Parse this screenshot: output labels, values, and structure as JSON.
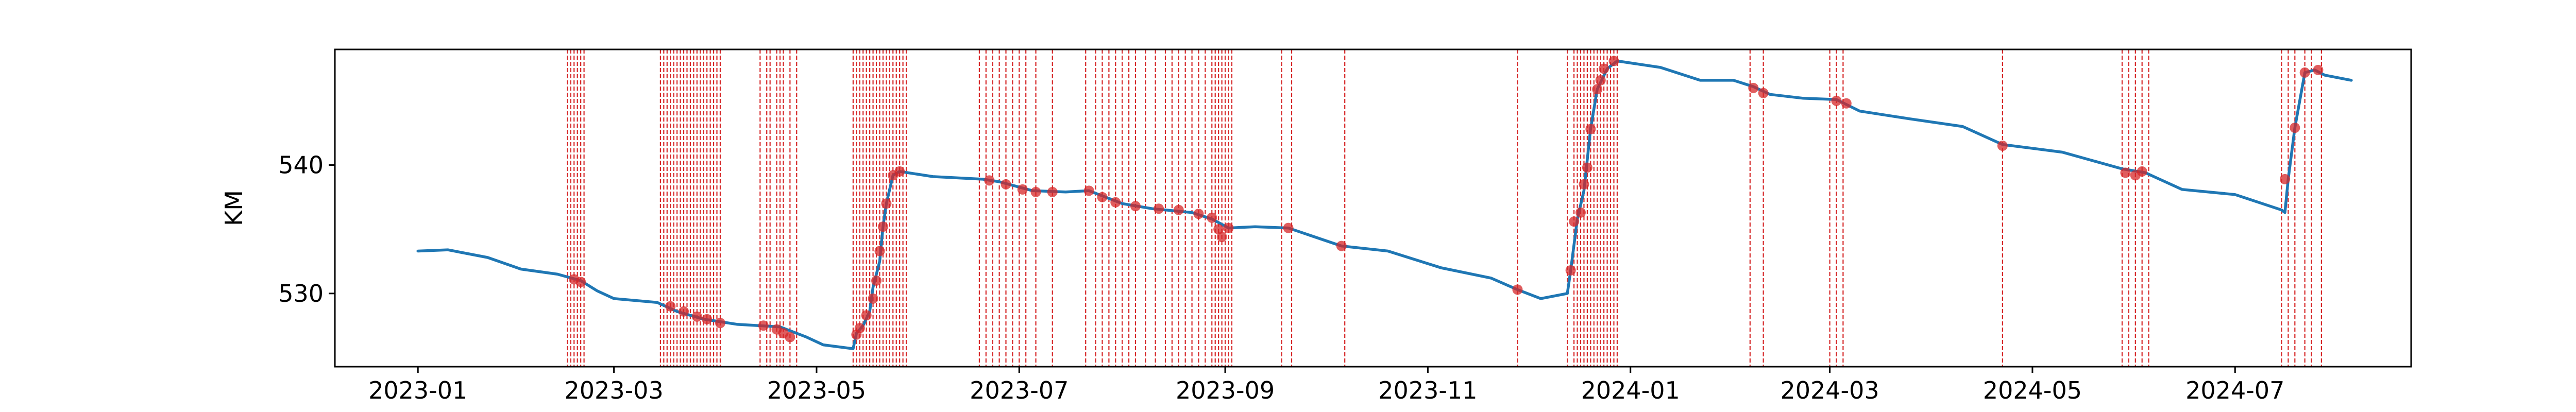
{
  "chart_data": {
    "type": "line",
    "title": "",
    "xlabel": "",
    "ylabel": "KM",
    "x_range": [
      "2022-12-07",
      "2024-08-23"
    ],
    "ylim": [
      524.3,
      549.0
    ],
    "grid": false,
    "x_ticks": [
      "2023-01",
      "2023-03",
      "2023-05",
      "2023-07",
      "2023-09",
      "2023-11",
      "2024-01",
      "2024-03",
      "2024-05",
      "2024-07"
    ],
    "y_ticks": [
      530,
      540
    ],
    "colors": {
      "line": "#1f77b4",
      "event_line": "#d62728",
      "marker": "#d62728"
    },
    "series": [
      {
        "line_points": [
          [
            "2023-01-01",
            533.3
          ],
          [
            "2023-01-10",
            533.4
          ],
          [
            "2023-01-22",
            532.8
          ],
          [
            "2023-02-01",
            531.9
          ],
          [
            "2023-02-12",
            531.5
          ],
          [
            "2023-02-19",
            531.0
          ],
          [
            "2023-02-24",
            530.2
          ],
          [
            "2023-03-01",
            529.6
          ],
          [
            "2023-03-14",
            529.3
          ],
          [
            "2023-03-20",
            528.6
          ],
          [
            "2023-03-28",
            528.0
          ],
          [
            "2023-04-07",
            527.6
          ],
          [
            "2023-04-20",
            527.4
          ],
          [
            "2023-04-28",
            526.6
          ],
          [
            "2023-05-03",
            526.0
          ],
          [
            "2023-05-12",
            525.7
          ],
          [
            "2023-05-13",
            526.9
          ],
          [
            "2023-05-15",
            527.5
          ],
          [
            "2023-05-17",
            528.6
          ],
          [
            "2023-05-18",
            530.5
          ],
          [
            "2023-05-20",
            532.5
          ],
          [
            "2023-05-21",
            535.2
          ],
          [
            "2023-05-22",
            537.0
          ],
          [
            "2023-05-24",
            539.2
          ],
          [
            "2023-05-26",
            539.5
          ],
          [
            "2023-06-05",
            539.1
          ],
          [
            "2023-06-20",
            538.9
          ],
          [
            "2023-06-25",
            538.7
          ],
          [
            "2023-07-05",
            538.0
          ],
          [
            "2023-07-15",
            537.9
          ],
          [
            "2023-07-22",
            538.0
          ],
          [
            "2023-08-01",
            537.0
          ],
          [
            "2023-08-10",
            536.6
          ],
          [
            "2023-08-22",
            536.3
          ],
          [
            "2023-08-28",
            535.8
          ],
          [
            "2023-09-02",
            535.1
          ],
          [
            "2023-09-10",
            535.2
          ],
          [
            "2023-09-20",
            535.1
          ],
          [
            "2023-10-06",
            533.7
          ],
          [
            "2023-10-20",
            533.3
          ],
          [
            "2023-11-05",
            532.0
          ],
          [
            "2023-11-20",
            531.2
          ],
          [
            "2023-11-28",
            530.3
          ],
          [
            "2023-12-05",
            529.6
          ],
          [
            "2023-12-13",
            530.0
          ],
          [
            "2023-12-14",
            531.8
          ],
          [
            "2023-12-16",
            535.8
          ],
          [
            "2023-12-18",
            538.0
          ],
          [
            "2023-12-20",
            542.8
          ],
          [
            "2023-12-22",
            545.9
          ],
          [
            "2023-12-25",
            547.5
          ],
          [
            "2023-12-28",
            548.1
          ],
          [
            "2024-01-10",
            547.6
          ],
          [
            "2024-01-22",
            546.6
          ],
          [
            "2024-02-01",
            546.6
          ],
          [
            "2024-02-07",
            546.1
          ],
          [
            "2024-02-12",
            545.5
          ],
          [
            "2024-02-22",
            545.2
          ],
          [
            "2024-03-03",
            545.1
          ],
          [
            "2024-03-10",
            544.2
          ],
          [
            "2024-03-25",
            543.6
          ],
          [
            "2024-04-10",
            543.0
          ],
          [
            "2024-04-22",
            541.6
          ],
          [
            "2024-05-10",
            541.0
          ],
          [
            "2024-05-28",
            539.7
          ],
          [
            "2024-06-04",
            539.4
          ],
          [
            "2024-06-15",
            538.1
          ],
          [
            "2024-07-01",
            537.7
          ],
          [
            "2024-07-15",
            536.5
          ],
          [
            "2024-07-16",
            536.3
          ],
          [
            "2024-07-17",
            538.9
          ],
          [
            "2024-07-19",
            542.9
          ],
          [
            "2024-07-22",
            547.2
          ],
          [
            "2024-07-25",
            547.4
          ],
          [
            "2024-07-28",
            547.0
          ],
          [
            "2024-08-05",
            546.6
          ]
        ],
        "markers": [
          [
            "2023-02-17",
            531.1
          ],
          [
            "2023-02-19",
            530.9
          ],
          [
            "2023-03-18",
            529.0
          ],
          [
            "2023-03-22",
            528.6
          ],
          [
            "2023-03-26",
            528.2
          ],
          [
            "2023-03-29",
            528.0
          ],
          [
            "2023-04-02",
            527.7
          ],
          [
            "2023-04-15",
            527.5
          ],
          [
            "2023-04-19",
            527.2
          ],
          [
            "2023-04-21",
            526.9
          ],
          [
            "2023-04-23",
            526.6
          ],
          [
            "2023-05-13",
            526.8
          ],
          [
            "2023-05-14",
            527.3
          ],
          [
            "2023-05-16",
            528.3
          ],
          [
            "2023-05-18",
            529.6
          ],
          [
            "2023-05-19",
            531.0
          ],
          [
            "2023-05-20",
            533.3
          ],
          [
            "2023-05-21",
            535.2
          ],
          [
            "2023-05-22",
            537.0
          ],
          [
            "2023-05-24",
            539.2
          ],
          [
            "2023-05-26",
            539.5
          ],
          [
            "2023-06-22",
            538.8
          ],
          [
            "2023-06-27",
            538.5
          ],
          [
            "2023-07-02",
            538.1
          ],
          [
            "2023-07-06",
            537.9
          ],
          [
            "2023-07-11",
            537.9
          ],
          [
            "2023-07-22",
            538.0
          ],
          [
            "2023-07-26",
            537.5
          ],
          [
            "2023-07-30",
            537.1
          ],
          [
            "2023-08-05",
            536.8
          ],
          [
            "2023-08-12",
            536.6
          ],
          [
            "2023-08-18",
            536.5
          ],
          [
            "2023-08-24",
            536.2
          ],
          [
            "2023-08-28",
            535.9
          ],
          [
            "2023-08-30",
            535.0
          ],
          [
            "2023-08-31",
            534.4
          ],
          [
            "2023-09-02",
            535.1
          ],
          [
            "2023-09-20",
            535.1
          ],
          [
            "2023-10-06",
            533.7
          ],
          [
            "2023-11-28",
            530.3
          ],
          [
            "2023-12-14",
            531.8
          ],
          [
            "2023-12-15",
            535.6
          ],
          [
            "2023-12-17",
            536.3
          ],
          [
            "2023-12-18",
            538.5
          ],
          [
            "2023-12-19",
            539.8
          ],
          [
            "2023-12-20",
            542.8
          ],
          [
            "2023-12-22",
            545.9
          ],
          [
            "2023-12-23",
            546.6
          ],
          [
            "2023-12-24",
            547.5
          ],
          [
            "2023-12-27",
            548.1
          ],
          [
            "2024-02-07",
            546.0
          ],
          [
            "2024-02-10",
            545.6
          ],
          [
            "2024-03-03",
            545.0
          ],
          [
            "2024-03-06",
            544.8
          ],
          [
            "2024-04-22",
            541.5
          ],
          [
            "2024-05-29",
            539.4
          ],
          [
            "2024-06-01",
            539.2
          ],
          [
            "2024-06-03",
            539.5
          ],
          [
            "2024-07-16",
            538.9
          ],
          [
            "2024-07-19",
            542.9
          ],
          [
            "2024-07-22",
            547.2
          ],
          [
            "2024-07-26",
            547.4
          ]
        ]
      }
    ],
    "event_lines": [
      "2023-02-15",
      "2023-02-16",
      "2023-02-17",
      "2023-02-18",
      "2023-02-19",
      "2023-02-20",
      "2023-03-15",
      "2023-03-16",
      "2023-03-17",
      "2023-03-18",
      "2023-03-19",
      "2023-03-20",
      "2023-03-21",
      "2023-03-22",
      "2023-03-23",
      "2023-03-24",
      "2023-03-25",
      "2023-03-26",
      "2023-03-27",
      "2023-03-28",
      "2023-03-29",
      "2023-03-30",
      "2023-03-31",
      "2023-04-01",
      "2023-04-02",
      "2023-04-14",
      "2023-04-16",
      "2023-04-17",
      "2023-04-19",
      "2023-04-20",
      "2023-04-21",
      "2023-04-23",
      "2023-04-25",
      "2023-05-12",
      "2023-05-13",
      "2023-05-14",
      "2023-05-15",
      "2023-05-16",
      "2023-05-17",
      "2023-05-18",
      "2023-05-19",
      "2023-05-20",
      "2023-05-21",
      "2023-05-22",
      "2023-05-23",
      "2023-05-24",
      "2023-05-25",
      "2023-05-26",
      "2023-05-27",
      "2023-05-28",
      "2023-06-19",
      "2023-06-21",
      "2023-06-23",
      "2023-06-25",
      "2023-06-27",
      "2023-06-29",
      "2023-07-01",
      "2023-07-03",
      "2023-07-06",
      "2023-07-11",
      "2023-07-21",
      "2023-07-24",
      "2023-07-26",
      "2023-07-28",
      "2023-07-30",
      "2023-08-01",
      "2023-08-03",
      "2023-08-05",
      "2023-08-08",
      "2023-08-11",
      "2023-08-14",
      "2023-08-16",
      "2023-08-18",
      "2023-08-20",
      "2023-08-22",
      "2023-08-24",
      "2023-08-26",
      "2023-08-28",
      "2023-08-29",
      "2023-08-30",
      "2023-08-31",
      "2023-09-01",
      "2023-09-02",
      "2023-09-03",
      "2023-09-18",
      "2023-09-21",
      "2023-10-07",
      "2023-11-28",
      "2023-12-13",
      "2023-12-15",
      "2023-12-16",
      "2023-12-17",
      "2023-12-18",
      "2023-12-19",
      "2023-12-20",
      "2023-12-21",
      "2023-12-22",
      "2023-12-23",
      "2023-12-24",
      "2023-12-25",
      "2023-12-26",
      "2023-12-27",
      "2023-12-28",
      "2024-02-06",
      "2024-02-10",
      "2024-03-01",
      "2024-03-03",
      "2024-03-05",
      "2024-04-22",
      "2024-05-28",
      "2024-05-30",
      "2024-06-01",
      "2024-06-03",
      "2024-06-05",
      "2024-07-15",
      "2024-07-17",
      "2024-07-19",
      "2024-07-22",
      "2024-07-24",
      "2024-07-27"
    ]
  }
}
